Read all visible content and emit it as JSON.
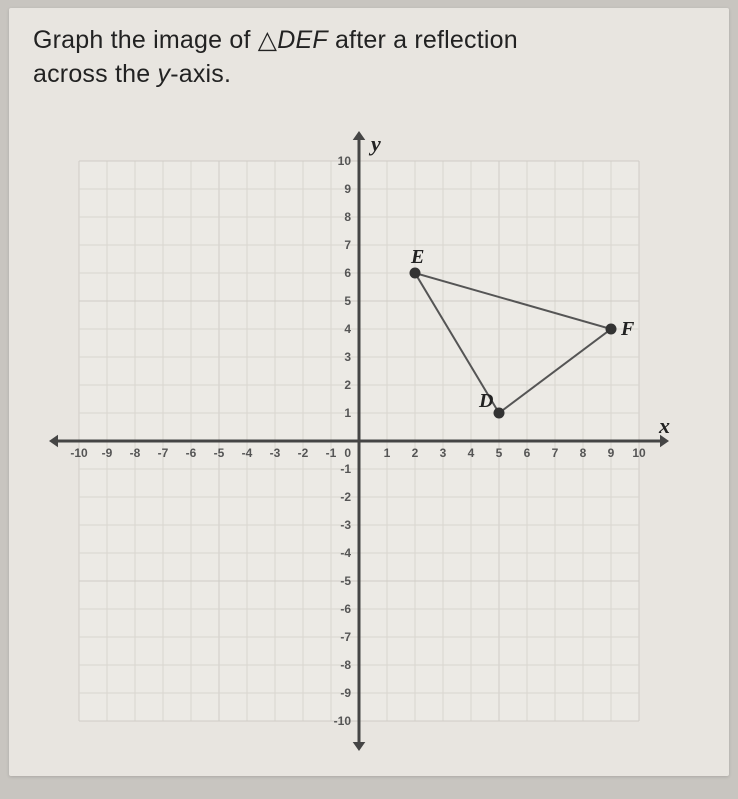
{
  "question": {
    "line1_prefix": "Graph the image of ",
    "triangle_symbol": "△",
    "triangle_name": "DEF",
    "line1_suffix": " after a reflection",
    "line2_prefix": "across the ",
    "y_axis_var": "y",
    "line2_suffix": "-axis."
  },
  "graph": {
    "x_axis_label": "x",
    "y_axis_label": "y",
    "xlim": [
      -10,
      10
    ],
    "ylim": [
      -10,
      10
    ],
    "tick_step": 1,
    "grid_color": "#d9d6d0",
    "axis_color": "#454545",
    "background_color": "#eceae5",
    "origin_label": "0",
    "xticks": [
      "-10",
      "-9",
      "-8",
      "-7",
      "-6",
      "-5",
      "-4",
      "-3",
      "-2",
      "-1",
      "1",
      "2",
      "3",
      "4",
      "5",
      "6",
      "7",
      "8",
      "9",
      "10"
    ],
    "yticks": [
      "10",
      "9",
      "8",
      "7",
      "6",
      "5",
      "4",
      "3",
      "2",
      "1",
      "-1",
      "-2",
      "-3",
      "-4",
      "-5",
      "-6",
      "-7",
      "-8",
      "-9",
      "-10"
    ]
  },
  "triangle": {
    "points": {
      "D": {
        "x": 5,
        "y": 1,
        "label": "D"
      },
      "E": {
        "x": 2,
        "y": 6,
        "label": "E"
      },
      "F": {
        "x": 9,
        "y": 4,
        "label": "F"
      }
    },
    "edge_color": "#555555",
    "point_color": "#333333"
  }
}
